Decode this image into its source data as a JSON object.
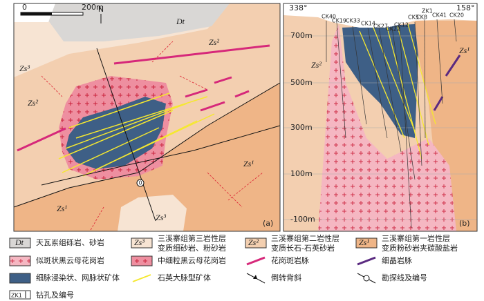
{
  "map_a": {
    "scale_start": "0",
    "scale_end": "200m",
    "north": "N",
    "panel": "(a)",
    "line_no": "0",
    "labels": [
      "Dt",
      "Zs²",
      "Zs³",
      "Zs²",
      "Zs¹",
      "Zs¹",
      "Zs³"
    ]
  },
  "section_b": {
    "azimuth_left": "338°",
    "azimuth_right": "158°",
    "panel": "(b)",
    "elevations": [
      "700m",
      "500m",
      "300m",
      "100m",
      "-100m"
    ],
    "drillholes": [
      "CK40",
      "CK19",
      "CK33",
      "CK14",
      "CK27",
      "CK22",
      "CK12",
      "CK5",
      "CK8",
      "ZK1",
      "CK41",
      "CK20"
    ],
    "labels": [
      "Zs²",
      "Zs¹"
    ]
  },
  "legend": {
    "items": [
      {
        "symbol": "Dt",
        "text": [
          "天瓦岽组砾岩、砂岩"
        ]
      },
      {
        "symbol": "Zs³",
        "text": [
          "三溪寨组第三岩性层",
          "变质细砂岩、粉砂岩"
        ]
      },
      {
        "symbol": "Zs²",
        "text": [
          "三溪寨组第二岩性层",
          "变质长石-石英砂岩"
        ]
      },
      {
        "symbol": "Zs¹",
        "text": [
          "三溪寨组第一岩性层",
          "变质粉砂岩夹碳酸盐岩"
        ]
      },
      {
        "text": [
          "似斑状黑云母花岗岩"
        ]
      },
      {
        "text": [
          "中细粒黑云母花岗岩"
        ]
      },
      {
        "text": [
          "花岗斑岩脉"
        ]
      },
      {
        "text": [
          "细晶岩脉"
        ]
      },
      {
        "text": [
          "细脉浸染状、网脉状矿体"
        ]
      },
      {
        "text": [
          "石英大脉型矿体"
        ]
      },
      {
        "text": [
          "倒转背斜"
        ]
      },
      {
        "text": [
          "勘探线及编号"
        ]
      },
      {
        "symbol": "ZK1",
        "text": [
          "钻孔及编号"
        ]
      }
    ]
  }
}
